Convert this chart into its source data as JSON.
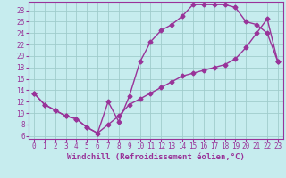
{
  "xlabel": "Windchill (Refroidissement éolien,°C)",
  "xlim": [
    -0.5,
    23.5
  ],
  "ylim": [
    5.5,
    29.5
  ],
  "xticks": [
    0,
    1,
    2,
    3,
    4,
    5,
    6,
    7,
    8,
    9,
    10,
    11,
    12,
    13,
    14,
    15,
    16,
    17,
    18,
    19,
    20,
    21,
    22,
    23
  ],
  "yticks": [
    6,
    8,
    10,
    12,
    14,
    16,
    18,
    20,
    22,
    24,
    26,
    28
  ],
  "background_color": "#c6ecee",
  "grid_color": "#a0cccc",
  "line_color": "#993399",
  "curve1_x": [
    0,
    1,
    2,
    3,
    4,
    5,
    6,
    7,
    8,
    9,
    10,
    11,
    12,
    13,
    14,
    15,
    16,
    17,
    18,
    19,
    20,
    21,
    22,
    23
  ],
  "curve1_y": [
    13.5,
    11.5,
    10.5,
    9.5,
    9.0,
    7.5,
    6.5,
    12.0,
    8.5,
    13.0,
    19.0,
    22.5,
    24.5,
    25.5,
    27.0,
    29.0,
    29.0,
    29.0,
    29.0,
    28.5,
    26.0,
    25.5,
    24.0,
    19.0
  ],
  "curve2_x": [
    0,
    1,
    2,
    3,
    4,
    5,
    6,
    7,
    8,
    9,
    10,
    11,
    12,
    13,
    14,
    15,
    16,
    17,
    18,
    19,
    20,
    21,
    22,
    23
  ],
  "curve2_y": [
    13.5,
    11.5,
    10.5,
    9.5,
    9.0,
    7.5,
    6.5,
    8.0,
    9.5,
    11.5,
    12.5,
    13.5,
    14.5,
    15.5,
    16.5,
    17.0,
    17.5,
    18.0,
    18.5,
    19.5,
    21.5,
    24.0,
    26.5,
    19.0
  ],
  "marker": "D",
  "markersize": 2.5,
  "linewidth": 1.0,
  "tick_fontsize": 5.5,
  "label_fontsize": 6.5
}
